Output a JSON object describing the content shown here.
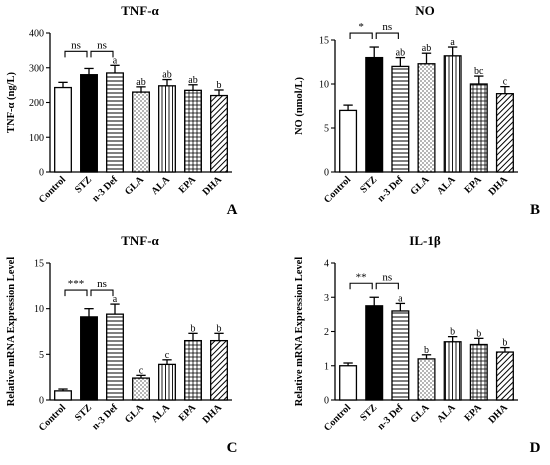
{
  "chart_data": [
    {
      "type": "bar",
      "panel": "A",
      "title": "TNF-α",
      "ylabel": "TNF-α (ng/L)",
      "xlabel": "",
      "ylim": [
        0,
        400
      ],
      "yticks": [
        "0",
        "100",
        "200",
        "300",
        "400"
      ],
      "categories": [
        "Control",
        "STZ",
        "n-3 Def",
        "GLA",
        "ALA",
        "EPA",
        "DHA"
      ],
      "values": [
        243,
        280,
        285,
        230,
        248,
        235,
        220
      ],
      "errors": [
        15,
        18,
        22,
        15,
        18,
        16,
        16
      ],
      "letters": [
        "",
        "",
        "a",
        "ab",
        "ab",
        "ab",
        "b"
      ],
      "comparisons": [
        {
          "from": 0,
          "to": 1,
          "label": "ns"
        },
        {
          "from": 1,
          "to": 2,
          "label": "ns"
        }
      ]
    },
    {
      "type": "bar",
      "panel": "B",
      "title": "NO",
      "ylabel": "NO (nmol/L)",
      "xlabel": "",
      "ylim": [
        0,
        15
      ],
      "yticks": [
        "0",
        "5",
        "10",
        "15"
      ],
      "categories": [
        "Control",
        "STZ",
        "n-3 Def",
        "GLA",
        "ALA",
        "EPA",
        "DHA"
      ],
      "values": [
        7.0,
        13.0,
        12.0,
        12.3,
        13.2,
        10.0,
        8.9
      ],
      "errors": [
        0.6,
        1.2,
        1.0,
        1.2,
        1.0,
        0.9,
        0.8
      ],
      "letters": [
        "",
        "",
        "ab",
        "ab",
        "a",
        "bc",
        "c"
      ],
      "comparisons": [
        {
          "from": 0,
          "to": 1,
          "label": "*"
        },
        {
          "from": 1,
          "to": 2,
          "label": "ns"
        }
      ]
    },
    {
      "type": "bar",
      "panel": "C",
      "title": "TNF-α",
      "ylabel": "Relative mRNA Expression Level",
      "xlabel": "",
      "ylim": [
        0,
        15
      ],
      "yticks": [
        "0",
        "5",
        "10",
        "15"
      ],
      "categories": [
        "Control",
        "STZ",
        "n-3 Def",
        "GLA",
        "ALA",
        "EPA",
        "DHA"
      ],
      "values": [
        1.0,
        9.1,
        9.4,
        2.4,
        3.9,
        6.5,
        6.5
      ],
      "errors": [
        0.2,
        0.9,
        1.1,
        0.3,
        0.5,
        0.8,
        0.8
      ],
      "letters": [
        "",
        "",
        "a",
        "c",
        "c",
        "b",
        "b"
      ],
      "comparisons": [
        {
          "from": 0,
          "to": 1,
          "label": "***"
        },
        {
          "from": 1,
          "to": 2,
          "label": "ns"
        }
      ]
    },
    {
      "type": "bar",
      "panel": "D",
      "title": "IL-1β",
      "ylabel": "Relative mRNA Expression Level",
      "xlabel": "",
      "ylim": [
        0,
        4
      ],
      "yticks": [
        "0",
        "1",
        "2",
        "3",
        "4"
      ],
      "categories": [
        "Control",
        "STZ",
        "n-3 Def",
        "GLA",
        "ALA",
        "EPA",
        "DHA"
      ],
      "values": [
        1.0,
        2.75,
        2.6,
        1.2,
        1.7,
        1.62,
        1.4
      ],
      "errors": [
        0.08,
        0.25,
        0.22,
        0.12,
        0.15,
        0.18,
        0.13
      ],
      "letters": [
        "",
        "",
        "a",
        "b",
        "b",
        "b",
        "b"
      ],
      "comparisons": [
        {
          "from": 0,
          "to": 1,
          "label": "**"
        },
        {
          "from": 1,
          "to": 2,
          "label": "ns"
        }
      ]
    }
  ],
  "colors": {
    "stroke": "#000000",
    "fill_white": "#ffffff",
    "fill_black": "#000000"
  },
  "bar_patterns": [
    "white",
    "black",
    "horizontal-lines",
    "dots",
    "vertical-lines",
    "grid",
    "diagonal-lines"
  ]
}
